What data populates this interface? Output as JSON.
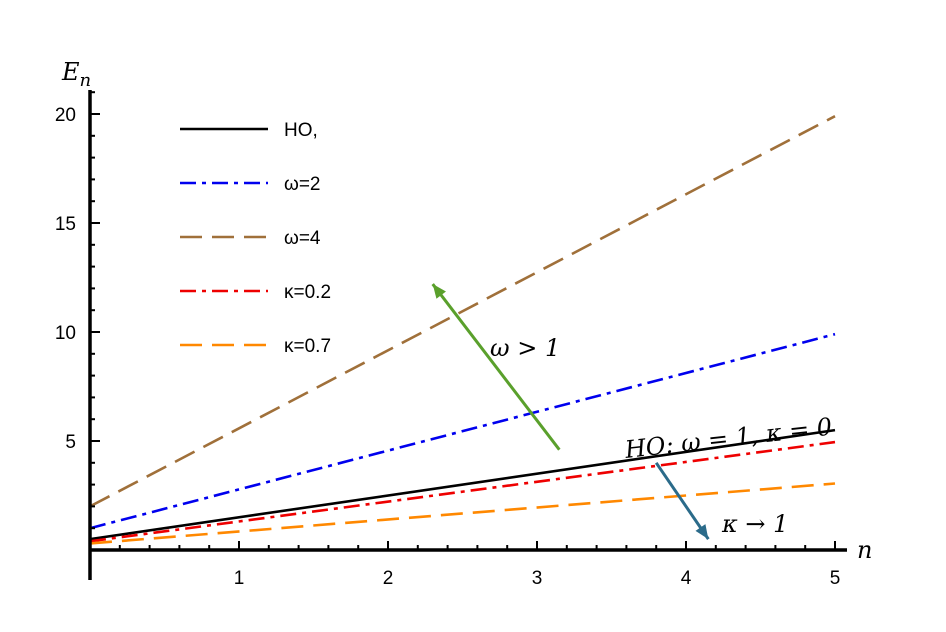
{
  "chart_data": {
    "type": "line",
    "xlabel": "n",
    "ylabel": "E_n",
    "ylabel_base": "E",
    "ylabel_sub": "n",
    "xlim": [
      0,
      5
    ],
    "ylim": [
      0,
      21
    ],
    "x_ticks": [
      1,
      2,
      3,
      4,
      5
    ],
    "y_ticks": [
      5,
      10,
      15,
      20
    ],
    "x": [
      0,
      5
    ],
    "series": [
      {
        "name": "HO,",
        "values": [
          0.5,
          5.5
        ],
        "color": "#000000",
        "dash": "solid"
      },
      {
        "name": "ω=2",
        "values": [
          1.0,
          9.9
        ],
        "color": "#0000ee",
        "dash": "dashdot"
      },
      {
        "name": "ω=4",
        "values": [
          2.0,
          19.9
        ],
        "color": "#a0703a",
        "dash": "longdash"
      },
      {
        "name": "κ=0.2",
        "values": [
          0.4,
          4.95
        ],
        "color": "#ee0000",
        "dash": "dashdot"
      },
      {
        "name": "κ=0.7",
        "values": [
          0.3,
          3.05
        ],
        "color": "#ff8800",
        "dash": "longdash"
      }
    ],
    "legend_position": "top-left",
    "annotations": {
      "omega_arrow": {
        "text": "ω > 1",
        "color": "#5aa02c",
        "from": [
          3.15,
          4.6
        ],
        "to": [
          2.3,
          12.2
        ]
      },
      "kappa_arrow": {
        "text": "κ → 1",
        "color": "#2b6b8a",
        "from": [
          3.8,
          4.0
        ],
        "to": [
          4.15,
          0.5
        ]
      },
      "ho_label": {
        "text": "HO: ω = 1, κ = 0"
      }
    }
  }
}
